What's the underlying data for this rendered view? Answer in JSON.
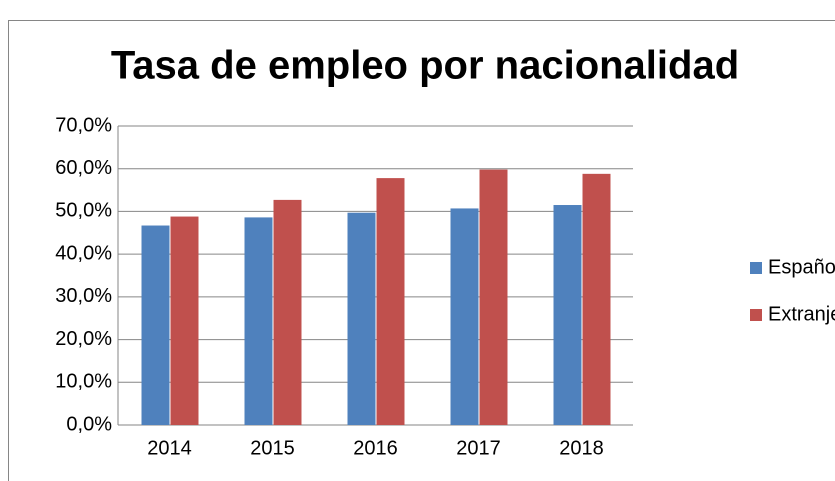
{
  "chart_data": {
    "type": "bar",
    "title": "Tasa de empleo por nacionalidad",
    "categories": [
      "2014",
      "2015",
      "2016",
      "2017",
      "2018"
    ],
    "series": [
      {
        "name": "Española",
        "color": "#4f81bd",
        "values": [
          46.7,
          48.6,
          49.7,
          50.7,
          51.5
        ]
      },
      {
        "name": "Extranjeros",
        "color": "#c0504d",
        "values": [
          48.8,
          52.7,
          57.8,
          59.8,
          58.8
        ]
      }
    ],
    "ylim": [
      0,
      70
    ],
    "yticks": [
      {
        "value": 0,
        "label": "0,0%"
      },
      {
        "value": 10,
        "label": "10,0%"
      },
      {
        "value": 20,
        "label": "20,0%"
      },
      {
        "value": 30,
        "label": "30,0%"
      },
      {
        "value": 40,
        "label": "40,0%"
      },
      {
        "value": 50,
        "label": "50,0%"
      },
      {
        "value": 60,
        "label": "60,0%"
      },
      {
        "value": 70,
        "label": "70,0%"
      }
    ],
    "grid": true,
    "legend": "right"
  }
}
